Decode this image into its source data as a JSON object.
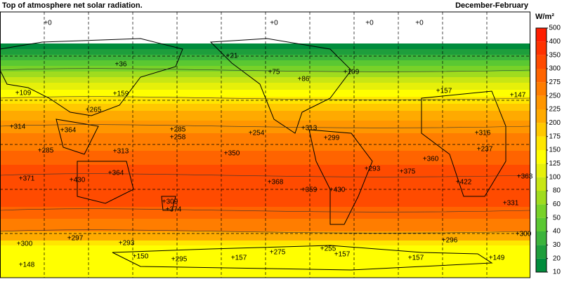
{
  "title": "Top of atmosphere net solar radiation.",
  "season": "December-February",
  "colorbar": {
    "unit": "W/m²",
    "ticks": [
      10,
      20,
      30,
      40,
      50,
      60,
      80,
      100,
      125,
      150,
      175,
      200,
      225,
      250,
      275,
      300,
      350,
      400,
      500
    ],
    "colors": [
      "#008c3c",
      "#1e9e3c",
      "#3cb43c",
      "#5ac832",
      "#78d228",
      "#a0dc1e",
      "#c8e614",
      "#e6f00a",
      "#ffff00",
      "#ffe600",
      "#ffc800",
      "#ffaa00",
      "#ff9600",
      "#ff7d00",
      "#ff6400",
      "#ff4b00",
      "#ff3200",
      "#ff1e00"
    ]
  },
  "annotations": [
    "+0",
    "+0",
    "+0",
    "+0",
    "+21",
    "+36",
    "+75",
    "+86",
    "+109",
    "+109",
    "+159",
    "+157",
    "+147",
    "+265",
    "+314",
    "+364",
    "+285",
    "+258",
    "+254",
    "+313",
    "+316",
    "+285",
    "+299",
    "+313",
    "+350",
    "+237",
    "+360",
    "+293",
    "+375",
    "+371",
    "+364",
    "+430",
    "+368",
    "+359",
    "+430",
    "+422",
    "+363",
    "+331",
    "+309",
    "+374",
    "+300",
    "+296",
    "+297",
    "+300",
    "+293",
    "+148",
    "+150",
    "+295",
    "+157",
    "+275",
    "+255",
    "+157",
    "+157",
    "+149"
  ]
}
